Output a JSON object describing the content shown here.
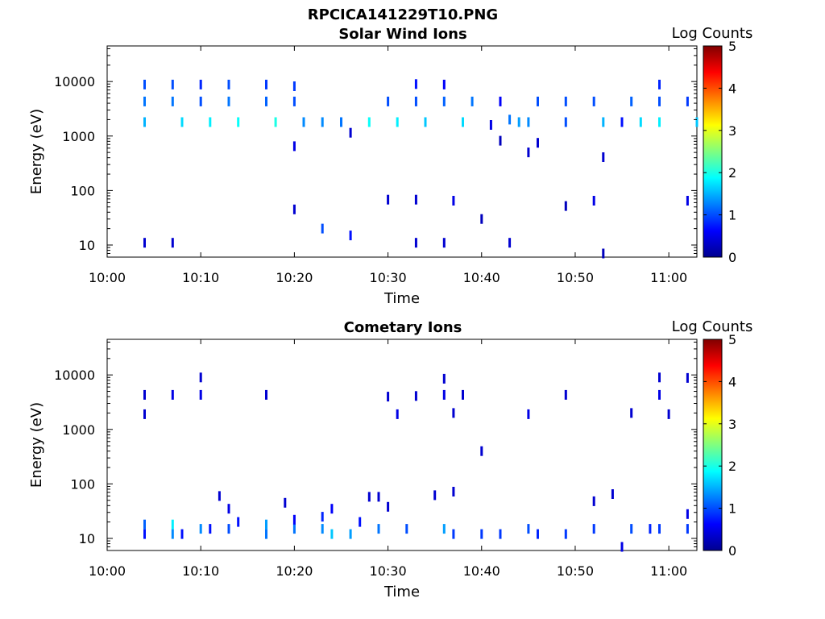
{
  "figure_title": "RPCICA141229T10.PNG",
  "colors": {
    "colormap": "jet",
    "axis": "#000000",
    "background": "#ffffff"
  },
  "chart_data": [
    {
      "type": "heatmap",
      "title": "Solar Wind Ions",
      "xlabel": "Time",
      "ylabel": "Energy (eV)",
      "colorbar_label": "Log Counts",
      "yscale": "log",
      "xlim": [
        "10:00",
        "11:03"
      ],
      "ylim": [
        6,
        45000
      ],
      "x_ticks": [
        "10:00",
        "10:10",
        "10:20",
        "10:30",
        "10:40",
        "10:50",
        "11:00"
      ],
      "y_ticks": [
        {
          "value": 10,
          "label": "10"
        },
        {
          "value": 100,
          "label": "100"
        },
        {
          "value": 1000,
          "label": "1000"
        },
        {
          "value": 10000,
          "label": "10000"
        }
      ],
      "clim": [
        0,
        5
      ],
      "colorbar_ticks": [
        "0",
        "1",
        "2",
        "3",
        "4",
        "5"
      ],
      "points": [
        [
          "10:04",
          1800,
          1.5
        ],
        [
          "10:04",
          4300,
          1.2
        ],
        [
          "10:04",
          8800,
          1.0
        ],
        [
          "10:04",
          11,
          0.4
        ],
        [
          "10:07",
          11,
          0.4
        ],
        [
          "10:07",
          4300,
          1.2
        ],
        [
          "10:07",
          8800,
          1.0
        ],
        [
          "10:08",
          1800,
          1.7
        ],
        [
          "10:10",
          4300,
          1.0
        ],
        [
          "10:10",
          8800,
          0.8
        ],
        [
          "10:11",
          1800,
          1.8
        ],
        [
          "10:13",
          4300,
          1.2
        ],
        [
          "10:13",
          8800,
          1.0
        ],
        [
          "10:14",
          1800,
          1.9
        ],
        [
          "10:17",
          4300,
          1.1
        ],
        [
          "10:17",
          8800,
          0.9
        ],
        [
          "10:18",
          1800,
          2.0
        ],
        [
          "10:20",
          4300,
          1.0
        ],
        [
          "10:20",
          8200,
          0.9
        ],
        [
          "10:21",
          1800,
          1.3
        ],
        [
          "10:20",
          650,
          0.5
        ],
        [
          "10:20",
          45,
          0.4
        ],
        [
          "10:23",
          20,
          1.0
        ],
        [
          "10:23",
          1800,
          1.3
        ],
        [
          "10:25",
          1800,
          1.2
        ],
        [
          "10:26",
          15,
          0.7
        ],
        [
          "10:26",
          1150,
          0.4
        ],
        [
          "10:28",
          1800,
          1.9
        ],
        [
          "10:30",
          4300,
          1.0
        ],
        [
          "10:30",
          68,
          0.4
        ],
        [
          "10:31",
          1800,
          1.8
        ],
        [
          "10:33",
          68,
          0.4
        ],
        [
          "10:33",
          9000,
          0.7
        ],
        [
          "10:33",
          11,
          0.4
        ],
        [
          "10:33",
          4300,
          1.0
        ],
        [
          "10:34",
          1800,
          1.6
        ],
        [
          "10:36",
          4300,
          1.1
        ],
        [
          "10:36",
          8800,
          0.6
        ],
        [
          "10:36",
          11,
          0.4
        ],
        [
          "10:37",
          65,
          0.5
        ],
        [
          "10:38",
          1800,
          1.7
        ],
        [
          "10:39",
          4300,
          1.2
        ],
        [
          "10:40",
          30,
          0.3
        ],
        [
          "10:41",
          1600,
          0.5
        ],
        [
          "10:42",
          4300,
          0.6
        ],
        [
          "10:42",
          820,
          0.3
        ],
        [
          "10:43",
          11,
          0.4
        ],
        [
          "10:43",
          2000,
          1.2
        ],
        [
          "10:44",
          1800,
          1.4
        ],
        [
          "10:45",
          500,
          0.4
        ],
        [
          "10:46",
          750,
          0.4
        ],
        [
          "10:45",
          1800,
          1.3
        ],
        [
          "10:46",
          4300,
          1.0
        ],
        [
          "10:49",
          4300,
          1.0
        ],
        [
          "10:49",
          52,
          0.3
        ],
        [
          "10:49",
          1800,
          1.0
        ],
        [
          "10:52",
          4300,
          1.0
        ],
        [
          "10:52",
          65,
          0.5
        ],
        [
          "10:53",
          1800,
          1.5
        ],
        [
          "10:53",
          410,
          0.4
        ],
        [
          "10:53",
          7,
          0.3
        ],
        [
          "10:55",
          1800,
          0.7
        ],
        [
          "10:56",
          4300,
          1.1
        ],
        [
          "10:57",
          1800,
          1.7
        ],
        [
          "10:59",
          8800,
          0.8
        ],
        [
          "10:59",
          4300,
          1.0
        ],
        [
          "10:59",
          1800,
          1.8
        ],
        [
          "11:02",
          4300,
          0.9
        ],
        [
          "11:02",
          65,
          0.5
        ],
        [
          "11:03",
          1800,
          1.6
        ]
      ]
    },
    {
      "type": "heatmap",
      "title": "Cometary Ions",
      "xlabel": "Time",
      "ylabel": "Energy (eV)",
      "colorbar_label": "Log Counts",
      "yscale": "log",
      "xlim": [
        "10:00",
        "11:03"
      ],
      "ylim": [
        6,
        45000
      ],
      "x_ticks": [
        "10:00",
        "10:10",
        "10:20",
        "10:30",
        "10:40",
        "10:50",
        "11:00"
      ],
      "y_ticks": [
        {
          "value": 10,
          "label": "10"
        },
        {
          "value": 100,
          "label": "100"
        },
        {
          "value": 1000,
          "label": "1000"
        },
        {
          "value": 10000,
          "label": "10000"
        }
      ],
      "clim": [
        0,
        5
      ],
      "colorbar_ticks": [
        "0",
        "1",
        "2",
        "3",
        "4",
        "5"
      ],
      "points": [
        [
          "10:04",
          12,
          0.7
        ],
        [
          "10:04",
          18,
          1.1
        ],
        [
          "10:04",
          4300,
          0.4
        ],
        [
          "10:04",
          1900,
          0.4
        ],
        [
          "10:07",
          12,
          1.3
        ],
        [
          "10:07",
          18,
          1.8
        ],
        [
          "10:07",
          4300,
          0.5
        ],
        [
          "10:08",
          12,
          0.7
        ],
        [
          "10:10",
          15,
          1.3
        ],
        [
          "10:10",
          9000,
          0.4
        ],
        [
          "10:10",
          4300,
          0.5
        ],
        [
          "10:11",
          15,
          0.7
        ],
        [
          "10:12",
          60,
          0.4
        ],
        [
          "10:13",
          35,
          0.5
        ],
        [
          "10:13",
          15,
          1.0
        ],
        [
          "10:14",
          20,
          0.7
        ],
        [
          "10:17",
          12,
          1.2
        ],
        [
          "10:17",
          18,
          1.4
        ],
        [
          "10:17",
          4300,
          0.4
        ],
        [
          "10:19",
          45,
          0.4
        ],
        [
          "10:20",
          15,
          1.2
        ],
        [
          "10:20",
          22,
          0.6
        ],
        [
          "10:23",
          15,
          1.3
        ],
        [
          "10:23",
          25,
          0.8
        ],
        [
          "10:24",
          12,
          1.6
        ],
        [
          "10:24",
          35,
          0.6
        ],
        [
          "10:26",
          12,
          1.4
        ],
        [
          "10:27",
          20,
          0.7
        ],
        [
          "10:28",
          58,
          0.4
        ],
        [
          "10:29",
          58,
          0.4
        ],
        [
          "10:29",
          15,
          1.2
        ],
        [
          "10:30",
          38,
          0.4
        ],
        [
          "10:30",
          4000,
          0.4
        ],
        [
          "10:31",
          1900,
          0.5
        ],
        [
          "10:32",
          15,
          1.0
        ],
        [
          "10:33",
          4100,
          0.4
        ],
        [
          "10:35",
          62,
          0.4
        ],
        [
          "10:36",
          15,
          1.4
        ],
        [
          "10:36",
          8500,
          0.4
        ],
        [
          "10:36",
          4300,
          0.5
        ],
        [
          "10:37",
          72,
          0.4
        ],
        [
          "10:37",
          2000,
          0.4
        ],
        [
          "10:37",
          12,
          0.9
        ],
        [
          "10:38",
          4300,
          0.4
        ],
        [
          "10:40",
          400,
          0.4
        ],
        [
          "10:40",
          12,
          0.9
        ],
        [
          "10:42",
          12,
          0.9
        ],
        [
          "10:45",
          1900,
          0.5
        ],
        [
          "10:45",
          15,
          1.0
        ],
        [
          "10:46",
          12,
          0.8
        ],
        [
          "10:49",
          4300,
          0.4
        ],
        [
          "10:49",
          12,
          0.9
        ],
        [
          "10:52",
          48,
          0.4
        ],
        [
          "10:52",
          15,
          0.9
        ],
        [
          "10:54",
          65,
          0.4
        ],
        [
          "10:55",
          7,
          0.5
        ],
        [
          "10:56",
          2000,
          0.4
        ],
        [
          "10:56",
          15,
          1.0
        ],
        [
          "10:58",
          15,
          0.8
        ],
        [
          "10:59",
          9000,
          0.4
        ],
        [
          "10:59",
          4300,
          0.5
        ],
        [
          "10:59",
          15,
          0.9
        ],
        [
          "11:00",
          1900,
          0.4
        ],
        [
          "11:02",
          8800,
          0.4
        ],
        [
          "11:02",
          28,
          0.5
        ],
        [
          "11:02",
          15,
          0.9
        ]
      ]
    }
  ]
}
